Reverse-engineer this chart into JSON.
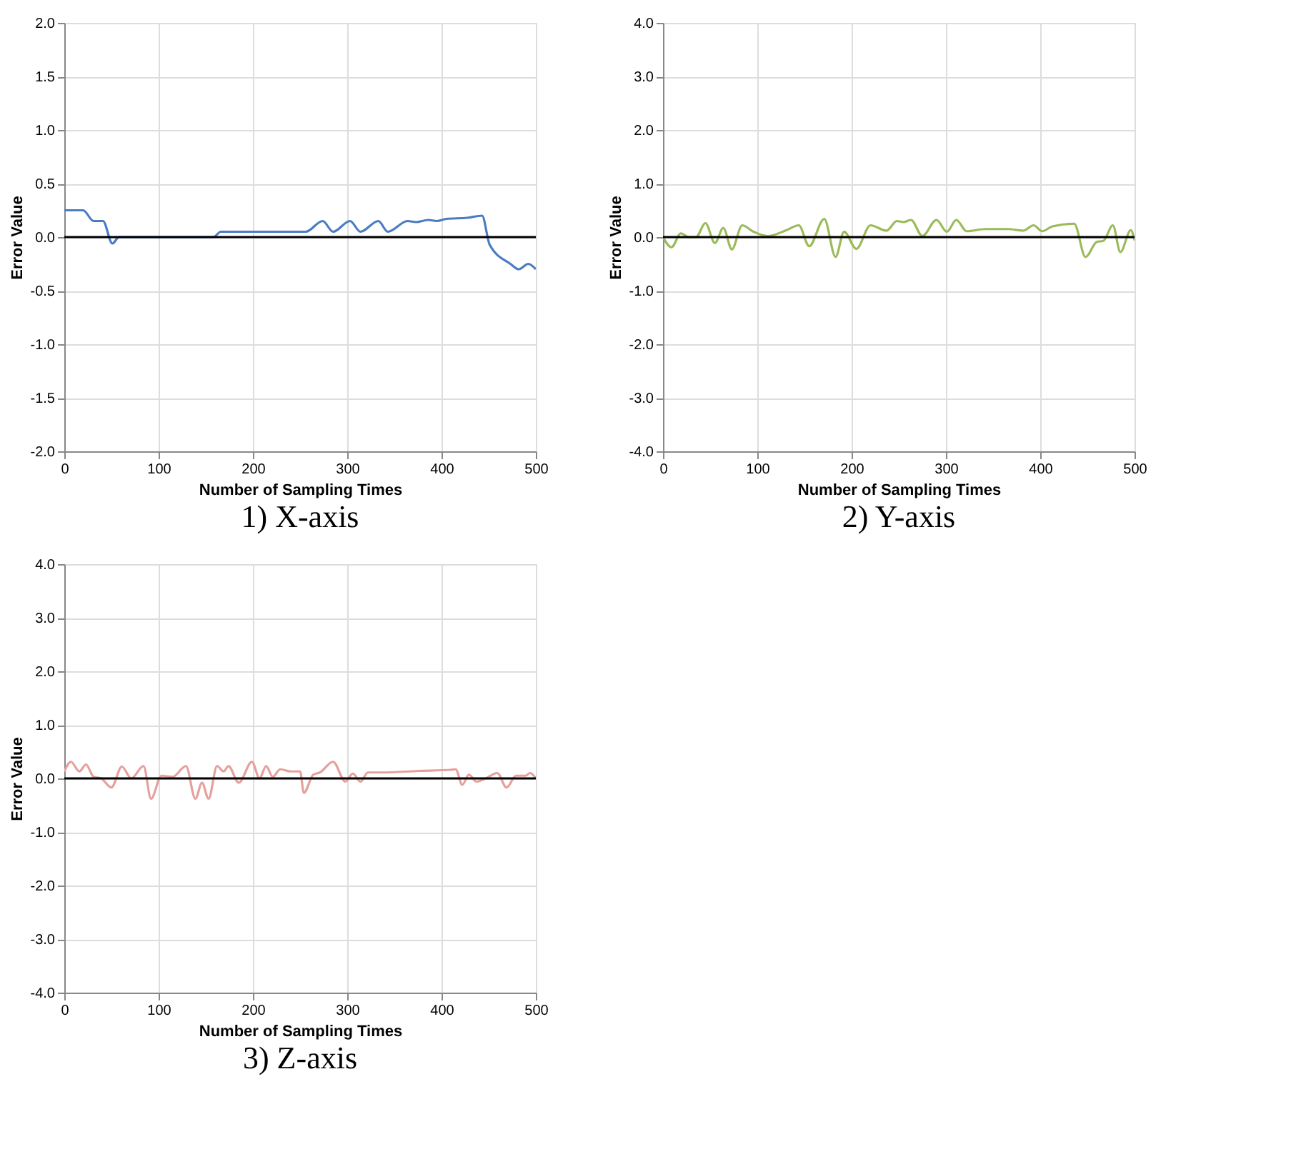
{
  "chart_data": [
    {
      "type": "line",
      "title": "1) X-axis",
      "xlabel": "Number of Sampling Times",
      "ylabel": "Error Value",
      "xlim": [
        0,
        500
      ],
      "ylim": [
        -2,
        2
      ],
      "xticks": [
        0,
        100,
        200,
        300,
        400,
        500
      ],
      "yticks": [
        {
          "value": -2,
          "label": "-2.0"
        },
        {
          "value": -1.5,
          "label": "-1.5"
        },
        {
          "value": -1,
          "label": "-1.0"
        },
        {
          "value": -0.5,
          "label": "-0.5"
        },
        {
          "value": 0,
          "label": "0.0"
        },
        {
          "value": 0.5,
          "label": "0.5"
        },
        {
          "value": 1,
          "label": "1.0"
        },
        {
          "value": 1.5,
          "label": "1.5"
        },
        {
          "value": 2,
          "label": "2.0"
        }
      ],
      "grid": true,
      "ref_lines": [
        {
          "axis": "y",
          "value": 0,
          "color": "#000000"
        }
      ],
      "series": [
        {
          "color": "#4a7cc4",
          "x": [
            0,
            20,
            31,
            41,
            51,
            58,
            158,
            166,
            256,
            274,
            285,
            303,
            314,
            333,
            343,
            364,
            373,
            386,
            395,
            405,
            427,
            443,
            451,
            473,
            482,
            492,
            500
          ],
          "values": [
            0.25,
            0.25,
            0.15,
            0.15,
            -0.06,
            0,
            0,
            0.05,
            0.05,
            0.15,
            0.05,
            0.15,
            0.05,
            0.15,
            0.05,
            0.15,
            0.14,
            0.16,
            0.15,
            0.17,
            0.18,
            0.2,
            -0.07,
            -0.25,
            -0.3,
            -0.25,
            -0.3
          ]
        }
      ]
    },
    {
      "type": "line",
      "title": "2) Y-axis",
      "xlabel": "Number of Sampling Times",
      "ylabel": "Error Value",
      "xlim": [
        0,
        500
      ],
      "ylim": [
        -4,
        4
      ],
      "xticks": [
        0,
        100,
        200,
        300,
        400,
        500
      ],
      "yticks": [
        {
          "value": -4,
          "label": "-4.0"
        },
        {
          "value": -3,
          "label": "-3.0"
        },
        {
          "value": -2,
          "label": "-2.0"
        },
        {
          "value": -1,
          "label": "-1.0"
        },
        {
          "value": 0,
          "label": "0.0"
        },
        {
          "value": 1,
          "label": "1.0"
        },
        {
          "value": 2,
          "label": "2.0"
        },
        {
          "value": 3,
          "label": "3.0"
        },
        {
          "value": 4,
          "label": "4.0"
        }
      ],
      "grid": true,
      "ref_lines": [
        {
          "axis": "y",
          "value": 0,
          "color": "#000000"
        }
      ],
      "series": [
        {
          "color": "#9bbb59",
          "x": [
            0,
            9,
            19,
            27,
            35,
            45,
            55,
            64,
            73,
            84,
            96,
            111,
            131,
            144,
            155,
            171,
            183,
            192,
            205,
            220,
            237,
            248,
            255,
            263,
            275,
            290,
            301,
            311,
            322,
            342,
            366,
            382,
            393,
            402,
            413,
            436,
            448,
            460,
            467,
            477,
            485,
            496,
            500
          ],
          "values": [
            0,
            -0.19,
            0.07,
            0,
            0,
            0.26,
            -0.11,
            0.17,
            -0.23,
            0.22,
            0.1,
            0.02,
            0.13,
            0.22,
            -0.17,
            0.34,
            -0.37,
            0.1,
            -0.22,
            0.22,
            0.12,
            0.3,
            0.28,
            0.32,
            0.02,
            0.32,
            0.1,
            0.32,
            0.11,
            0.15,
            0.15,
            0.12,
            0.22,
            0.11,
            0.2,
            0.25,
            -0.37,
            -0.09,
            -0.07,
            0.22,
            -0.28,
            0.13,
            -0.06
          ]
        }
      ]
    },
    {
      "type": "line",
      "title": "3) Z-axis",
      "xlabel": "Number of Sampling Times",
      "ylabel": "Error Value",
      "xlim": [
        0,
        500
      ],
      "ylim": [
        -4,
        4
      ],
      "xticks": [
        0,
        100,
        200,
        300,
        400,
        500
      ],
      "yticks": [
        {
          "value": -4,
          "label": "-4.0"
        },
        {
          "value": -3,
          "label": "-3.0"
        },
        {
          "value": -2,
          "label": "-2.0"
        },
        {
          "value": -1,
          "label": "-1.0"
        },
        {
          "value": 0,
          "label": "0.0"
        },
        {
          "value": 1,
          "label": "1.0"
        },
        {
          "value": 2,
          "label": "2.0"
        },
        {
          "value": 3,
          "label": "3.0"
        },
        {
          "value": 4,
          "label": "4.0"
        }
      ],
      "grid": true,
      "ref_lines": [
        {
          "axis": "y",
          "value": 0,
          "color": "#000000"
        }
      ],
      "series": [
        {
          "color": "#e6a09c",
          "x": [
            0,
            7,
            16,
            23,
            31,
            39,
            50,
            61,
            71,
            84,
            92,
            103,
            115,
            129,
            139,
            146,
            153,
            162,
            169,
            174,
            185,
            199,
            207,
            214,
            221,
            229,
            240,
            250,
            254,
            264,
            271,
            285,
            298,
            306,
            314,
            322,
            337,
            376,
            410,
            415,
            422,
            429,
            437,
            447,
            459,
            469,
            479,
            489,
            494,
            500
          ],
          "values": [
            0.13,
            0.31,
            0.13,
            0.26,
            0.03,
            0,
            -0.17,
            0.22,
            0,
            0.23,
            -0.38,
            0.05,
            0.03,
            0.23,
            -0.38,
            -0.08,
            -0.38,
            0.23,
            0.13,
            0.23,
            -0.08,
            0.31,
            0,
            0.23,
            0.03,
            0.17,
            0.13,
            0.13,
            -0.27,
            0.07,
            0.11,
            0.31,
            -0.06,
            0.09,
            -0.06,
            0.11,
            0.11,
            0.14,
            0.16,
            0.17,
            -0.12,
            0.07,
            -0.06,
            0,
            0.1,
            -0.17,
            0.05,
            0.05,
            0.1,
            0
          ]
        }
      ]
    }
  ]
}
